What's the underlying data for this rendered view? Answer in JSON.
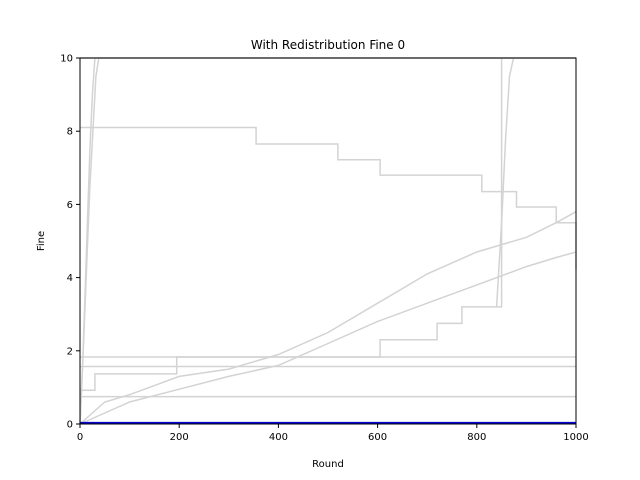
{
  "chart_data": {
    "type": "line",
    "title": "With Redistribution Fine 0",
    "xlabel": "Round",
    "ylabel": "Fine",
    "xlim": [
      0,
      1000
    ],
    "ylim": [
      0,
      10
    ],
    "xticks": [
      0,
      200,
      400,
      600,
      800,
      1000
    ],
    "yticks": [
      0,
      2,
      4,
      6,
      8,
      10
    ],
    "grid": false,
    "series": [
      {
        "color": "#d3d3d3",
        "step": false,
        "x": [
          0,
          5,
          10,
          15,
          20,
          25,
          30,
          35,
          40,
          45,
          1000
        ],
        "y": [
          0,
          1.5,
          3.5,
          5.5,
          7.5,
          9,
          10,
          10,
          10,
          10,
          10
        ]
      },
      {
        "color": "#d3d3d3",
        "step": false,
        "x": [
          0,
          8,
          14,
          20,
          26,
          32,
          38,
          44,
          1000
        ],
        "y": [
          0,
          2.5,
          4.5,
          6.5,
          8,
          9.5,
          10,
          10,
          10
        ]
      },
      {
        "color": "#d3d3d3",
        "step": true,
        "x": [
          0,
          10,
          355,
          520,
          605,
          810,
          880,
          960,
          1000
        ],
        "y": [
          8.1,
          8.1,
          7.65,
          7.22,
          6.8,
          6.35,
          5.93,
          5.5,
          4.23
        ]
      },
      {
        "color": "#d3d3d3",
        "step": true,
        "x": [
          0,
          30,
          100,
          195,
          380,
          600,
          1000
        ],
        "y": [
          0.92,
          1.37,
          1.37,
          1.83,
          1.83,
          1.83,
          1.83
        ]
      },
      {
        "color": "#d3d3d3",
        "step": true,
        "x": [
          0,
          605,
          720,
          770,
          850,
          1000
        ],
        "y": [
          1.83,
          2.3,
          2.75,
          3.2,
          10,
          10
        ]
      },
      {
        "color": "#d3d3d3",
        "step": false,
        "x": [
          0,
          50,
          100,
          200,
          300,
          400,
          500,
          600,
          700,
          800,
          900,
          960,
          1000
        ],
        "y": [
          0,
          0.6,
          0.8,
          1.3,
          1.5,
          1.9,
          2.5,
          3.3,
          4.1,
          4.7,
          5.1,
          5.5,
          5.8
        ]
      },
      {
        "color": "#d3d3d3",
        "step": false,
        "x": [
          0,
          50,
          100,
          200,
          300,
          400,
          500,
          600,
          700,
          800,
          900,
          960,
          1000
        ],
        "y": [
          0,
          0.3,
          0.6,
          0.95,
          1.3,
          1.6,
          2.2,
          2.8,
          3.3,
          3.8,
          4.3,
          4.55,
          4.7
        ]
      },
      {
        "color": "#d3d3d3",
        "step": false,
        "x": [
          0,
          1000
        ],
        "y": [
          1.57,
          1.57
        ]
      },
      {
        "color": "#d3d3d3",
        "step": false,
        "x": [
          0,
          1000
        ],
        "y": [
          0.75,
          0.75
        ]
      },
      {
        "color": "#d3d3d3",
        "step": false,
        "x": [
          0,
          1000
        ],
        "y": [
          10,
          10
        ]
      },
      {
        "color": "#d3d3d3",
        "step": false,
        "x": [
          0,
          855,
          865,
          872,
          878,
          1000
        ],
        "y": [
          10,
          10,
          10,
          10,
          10,
          10
        ]
      },
      {
        "color": "#d3d3d3",
        "step": false,
        "x": [
          840,
          850,
          858,
          866,
          874,
          1000
        ],
        "y": [
          3.2,
          5.5,
          7.8,
          9.5,
          10,
          10
        ]
      },
      {
        "color": "#0000cc",
        "step": false,
        "x": [
          0,
          1000
        ],
        "y": [
          0.03,
          0.03
        ]
      }
    ]
  }
}
